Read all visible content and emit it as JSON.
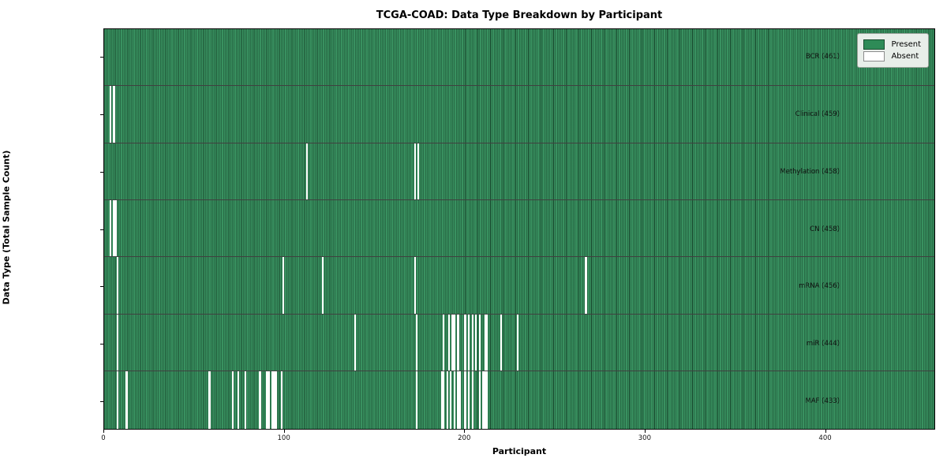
{
  "figure": {
    "title": "TCGA-COAD: Data Type Breakdown by Participant",
    "xlabel": "Participant",
    "ylabel": "Data Type (Total Sample Count)"
  },
  "legend": {
    "entries": [
      {
        "label": "Present",
        "color": "#2e8b57"
      },
      {
        "label": "Absent",
        "color": "#ffffff"
      }
    ]
  },
  "chart_data": {
    "type": "heatmap",
    "title": "TCGA-COAD: Data Type Breakdown by Participant",
    "xlabel": "Participant",
    "ylabel": "Data Type (Total Sample Count)",
    "x_ticks": [
      0,
      100,
      200,
      300,
      400
    ],
    "x_range": [
      0,
      461
    ],
    "n_participants": 461,
    "grid": false,
    "legend_position": "upper right",
    "colors": {
      "present": "#2e8b57",
      "present_edge": "#1c4f33",
      "absent": "#ffffff"
    },
    "rows": [
      {
        "data_type": "BCR",
        "count": 461,
        "label": "BCR (461)",
        "absent_participants": []
      },
      {
        "data_type": "Clinical",
        "count": 459,
        "label": "Clinical (459)",
        "absent_participants": [
          3,
          5
        ]
      },
      {
        "data_type": "Methylation",
        "count": 458,
        "label": "Methylation (458)",
        "absent_participants": [
          112,
          172,
          174
        ]
      },
      {
        "data_type": "CN",
        "count": 458,
        "label": "CN (458)",
        "absent_participants": [
          3,
          5,
          6
        ]
      },
      {
        "data_type": "mRNA",
        "count": 456,
        "label": "mRNA (456)",
        "absent_participants": [
          7,
          99,
          121,
          172,
          267
        ]
      },
      {
        "data_type": "miR",
        "count": 444,
        "label": "miR (444)",
        "absent_participants": [
          7,
          139,
          173,
          188,
          191,
          193,
          194,
          196,
          200,
          202,
          204,
          206,
          208,
          211,
          212,
          220,
          229
        ]
      },
      {
        "data_type": "MAF",
        "count": 433,
        "label": "MAF (433)",
        "absent_participants": [
          7,
          12,
          58,
          71,
          74,
          78,
          86,
          90,
          91,
          93,
          94,
          95,
          98,
          173,
          187,
          188,
          190,
          192,
          194,
          196,
          197,
          200,
          202,
          204,
          208,
          210,
          211,
          212
        ]
      }
    ]
  }
}
